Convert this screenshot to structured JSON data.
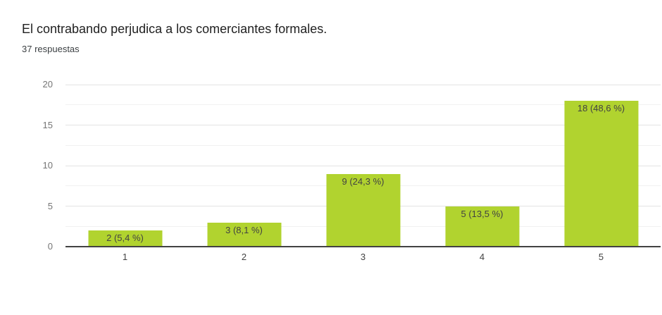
{
  "header": {
    "title": "El contrabando perjudica a los comerciantes formales.",
    "subtitle": "37 respuestas"
  },
  "chart_data": {
    "type": "bar",
    "title": "El contrabando perjudica a los comerciantes formales.",
    "subtitle": "37 respuestas",
    "total_responses": 37,
    "categories": [
      "1",
      "2",
      "3",
      "4",
      "5"
    ],
    "values": [
      2,
      3,
      9,
      5,
      18
    ],
    "percentages": [
      5.4,
      8.1,
      24.3,
      13.5,
      48.6
    ],
    "bar_labels": [
      "2 (5,4 %)",
      "3 (8,1 %)",
      "9 (24,3 %)",
      "5 (13,5 %)",
      "18 (48,6 %)"
    ],
    "xlabel": "",
    "ylabel": "",
    "ylim": [
      0,
      20
    ],
    "yticks": [
      0,
      5,
      10,
      15,
      20
    ],
    "minor_gridline_step": 2.5,
    "grid": true,
    "legend": false,
    "bar_color": "#b1d32f",
    "bar_label_color": "#424242",
    "axis_line_color": "#424242",
    "major_gridline_color": "#e3e3e3",
    "minor_gridline_color": "#f1f1f1",
    "y_label_color": "#757575",
    "x_label_color": "#424242"
  }
}
